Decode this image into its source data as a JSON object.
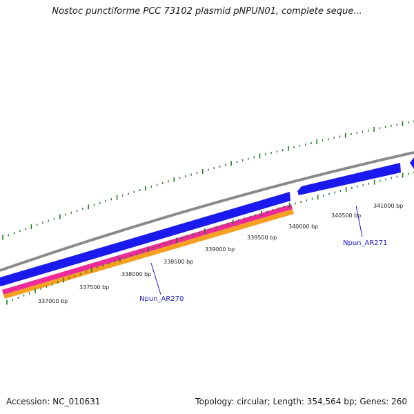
{
  "header": {
    "title": "Nostoc punctiforme PCC 73102 plasmid pNPUN01, complete seque..."
  },
  "footer": {
    "accession": "Accession: NC_010631",
    "summary": "Topology: circular; Length: 354,564 bp; Genes: 260"
  },
  "map": {
    "tick_labels": [
      "337000 bp",
      "337500 bp",
      "338000 bp",
      "338500 bp",
      "339000 bp",
      "339500 bp",
      "340000 bp",
      "340500 bp",
      "341000 bp"
    ],
    "gene_labels": [
      "Npun_AR270",
      "Npun_AR271"
    ],
    "colors": {
      "backbone": "#8a8a8a",
      "cds": "#1a1aee",
      "gene_pink": "#ee2a9a",
      "gene_orange": "#f5a020",
      "ticks": "#1f7a1f",
      "label": "#1a1acc"
    }
  }
}
